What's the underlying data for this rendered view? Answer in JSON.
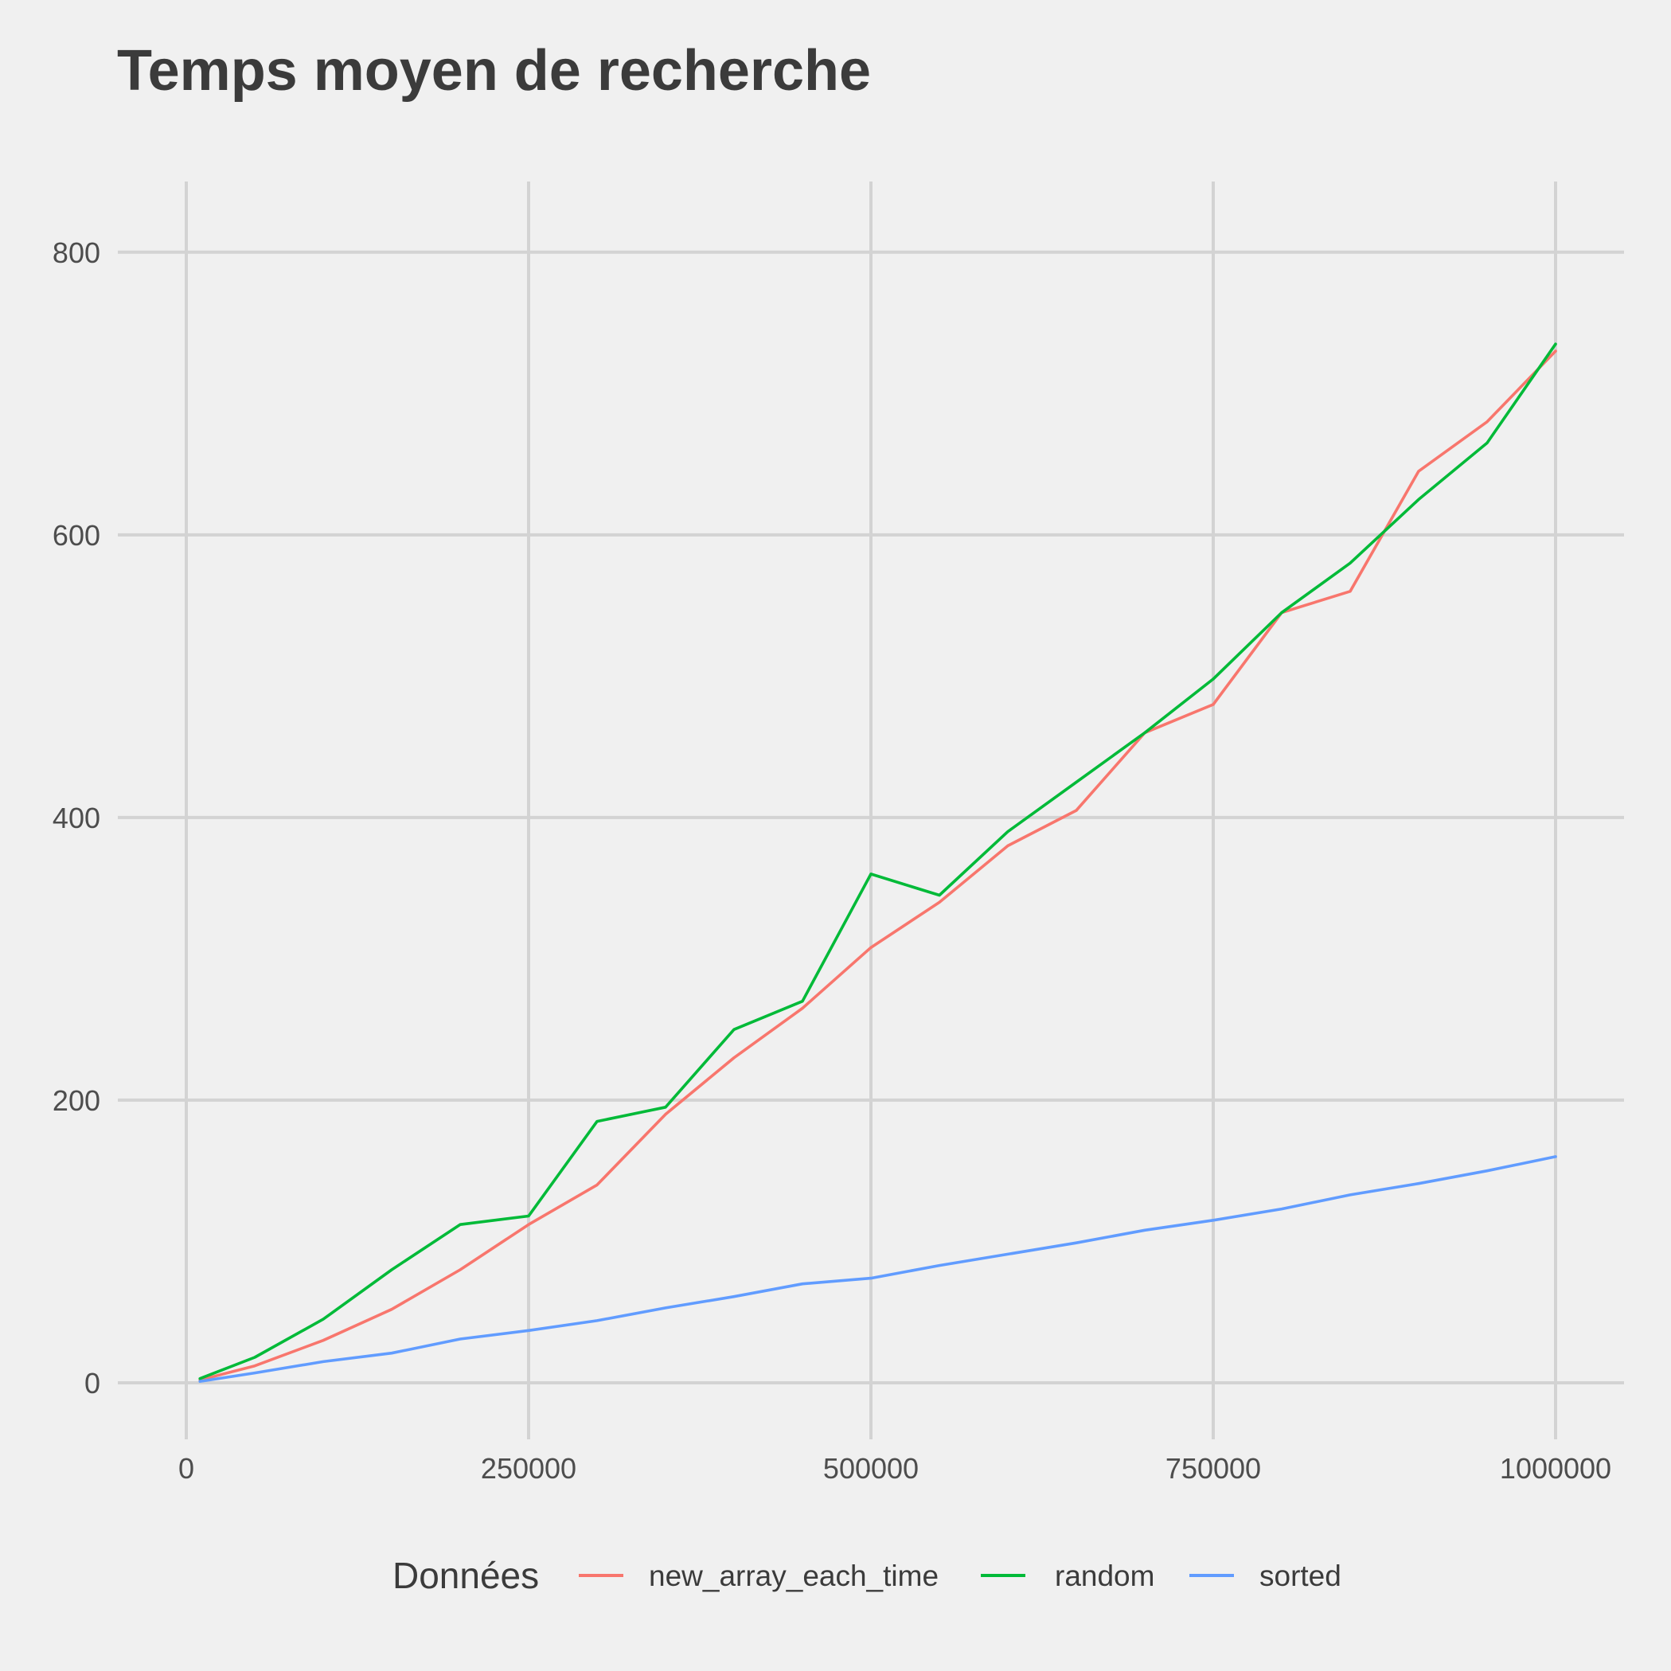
{
  "chart_data": {
    "type": "line",
    "title": "Temps moyen de recherche",
    "xlabel": "",
    "ylabel": "",
    "xlim": [
      -50000,
      1050000
    ],
    "ylim": [
      -40,
      850
    ],
    "x_ticks": [
      0,
      250000,
      500000,
      750000,
      1000000
    ],
    "x_tick_labels": [
      "0",
      "250000",
      "500000",
      "750000",
      "1000000"
    ],
    "y_ticks": [
      0,
      200,
      400,
      600,
      800
    ],
    "y_tick_labels": [
      "0",
      "200",
      "400",
      "600",
      "800"
    ],
    "grid": true,
    "legend": {
      "title": "Données",
      "position": "bottom"
    },
    "x": [
      10000,
      50000,
      100000,
      150000,
      200000,
      250000,
      300000,
      350000,
      400000,
      450000,
      500000,
      550000,
      600000,
      650000,
      700000,
      750000,
      800000,
      850000,
      900000,
      950000,
      1000000
    ],
    "series": [
      {
        "name": "new_array_each_time",
        "color": "#F8766D",
        "values": [
          2,
          12,
          30,
          52,
          80,
          112,
          140,
          190,
          230,
          265,
          308,
          340,
          380,
          405,
          460,
          480,
          545,
          560,
          645,
          680,
          730
        ]
      },
      {
        "name": "random",
        "color": "#00BA38",
        "values": [
          3,
          18,
          45,
          80,
          112,
          118,
          185,
          195,
          250,
          270,
          360,
          345,
          390,
          425,
          460,
          498,
          545,
          580,
          625,
          665,
          735
        ]
      },
      {
        "name": "sorted",
        "color": "#619CFF",
        "values": [
          1,
          7,
          15,
          21,
          31,
          37,
          44,
          53,
          61,
          70,
          74,
          83,
          91,
          99,
          108,
          115,
          123,
          133,
          141,
          150,
          160
        ]
      }
    ]
  }
}
